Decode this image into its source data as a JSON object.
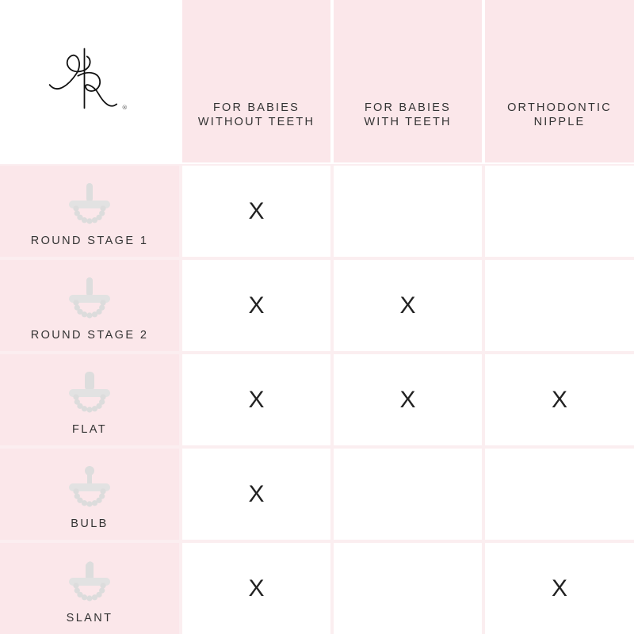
{
  "brand": {
    "logo_text": "RR®"
  },
  "columns": [
    "FOR BABIES WITHOUT TEETH",
    "FOR BABIES WITH TEETH",
    "ORTHODONTIC NIPPLE"
  ],
  "column_lines": [
    [
      "FOR BABIES",
      "WITHOUT TEETH"
    ],
    [
      "FOR BABIES",
      "WITH TEETH"
    ],
    [
      "ORTHODONTIC",
      "NIPPLE"
    ]
  ],
  "rows": [
    {
      "name": "ROUND STAGE 1",
      "icon": "pacifier-round-icon",
      "values": [
        "X",
        "",
        ""
      ]
    },
    {
      "name": "ROUND STAGE 2",
      "icon": "pacifier-round-icon",
      "values": [
        "X",
        "X",
        ""
      ]
    },
    {
      "name": "FLAT",
      "icon": "pacifier-flat-icon",
      "values": [
        "X",
        "X",
        "X"
      ]
    },
    {
      "name": "BULB",
      "icon": "pacifier-bulb-icon",
      "values": [
        "X",
        "",
        ""
      ]
    },
    {
      "name": "SLANT",
      "icon": "pacifier-slant-icon",
      "values": [
        "X",
        "",
        "X"
      ]
    }
  ],
  "colors": {
    "pink": "#fbe7ea",
    "text": "#333333",
    "icon": "#dcdcdc"
  }
}
